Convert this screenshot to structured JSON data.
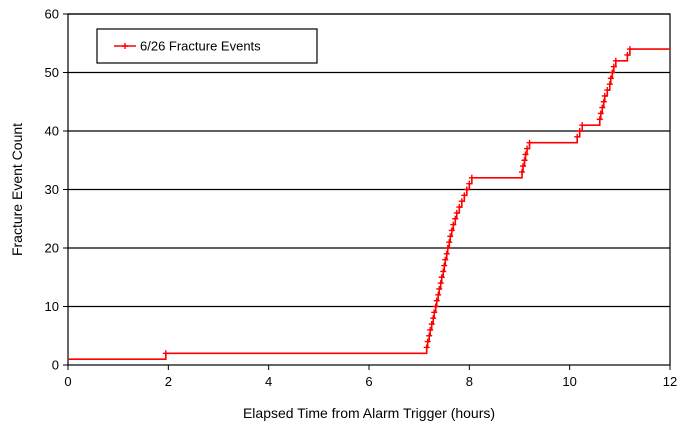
{
  "chart_data": {
    "type": "line",
    "title": "",
    "xlabel": "Elapsed Time from Alarm Trigger (hours)",
    "ylabel": "Fracture Event Count",
    "xlim": [
      0,
      12
    ],
    "ylim": [
      0,
      60
    ],
    "x_ticks": [
      "0",
      "2",
      "4",
      "6",
      "8",
      "10",
      "12"
    ],
    "y_ticks": [
      "0",
      "10",
      "20",
      "30",
      "40",
      "50",
      "60"
    ],
    "grid": "horizontal",
    "legend_position": "top-left",
    "series": [
      {
        "name": "6/26 Fracture Events",
        "color": "#ff0000",
        "marker": "plus",
        "step": true,
        "x": [
          0,
          1.95,
          7.15,
          7.17,
          7.2,
          7.22,
          7.25,
          7.28,
          7.3,
          7.33,
          7.35,
          7.38,
          7.4,
          7.43,
          7.45,
          7.48,
          7.5,
          7.52,
          7.55,
          7.57,
          7.6,
          7.62,
          7.65,
          7.68,
          7.72,
          7.75,
          7.8,
          7.85,
          7.9,
          7.95,
          8.0,
          8.05,
          9.05,
          9.07,
          9.1,
          9.12,
          9.15,
          9.2,
          10.15,
          10.2,
          10.25,
          10.6,
          10.62,
          10.65,
          10.68,
          10.7,
          10.75,
          10.8,
          10.82,
          10.85,
          10.88,
          10.92,
          11.15,
          11.2
        ],
        "y": [
          1,
          2,
          3,
          4,
          5,
          6,
          7,
          8,
          9,
          10,
          11,
          12,
          13,
          14,
          15,
          16,
          17,
          18,
          19,
          20,
          21,
          22,
          23,
          24,
          25,
          26,
          27,
          28,
          29,
          30,
          31,
          32,
          33,
          34,
          35,
          36,
          37,
          38,
          39,
          40,
          41,
          42,
          43,
          44,
          45,
          46,
          47,
          48,
          49,
          50,
          51,
          52,
          53,
          54
        ]
      }
    ]
  }
}
